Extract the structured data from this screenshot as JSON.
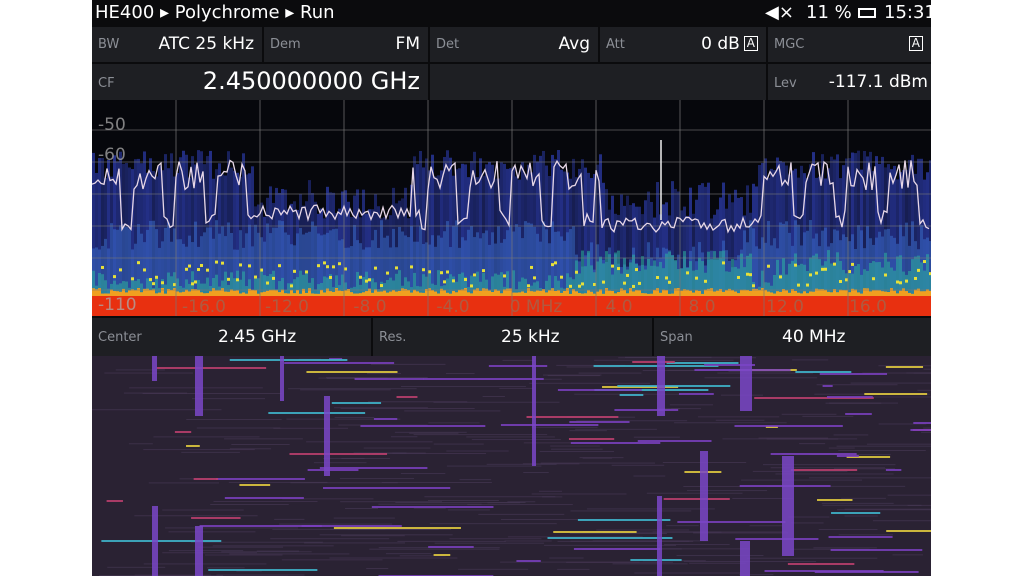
{
  "status_bar": {
    "device": "HE400",
    "mode": "Polychrome",
    "state": "Run",
    "battery": "11 %",
    "time": "15:31"
  },
  "params": [
    {
      "label": "BW",
      "value": "ATC 25 kHz"
    },
    {
      "label": "Dem",
      "value": "FM"
    },
    {
      "label": "Det",
      "value": "Avg"
    },
    {
      "label": "Att",
      "value": "0 dB",
      "flag": "A"
    },
    {
      "label": "MGC",
      "flag": "A"
    }
  ],
  "cf": {
    "label": "CF",
    "value": "2.450000000 GHz"
  },
  "lev": {
    "label": "Lev",
    "value": "-117.1 dBm"
  },
  "spectrum": {
    "y_labels": [
      "-50",
      "-60",
      "-110"
    ],
    "x_labels": [
      "-16.0",
      "-12.0",
      "-8.0",
      "-4.0",
      "0 MHz",
      "4.0",
      "8.0",
      "12.0",
      "16.0"
    ]
  },
  "footer": [
    {
      "label": "Center",
      "value": "2.45 GHz"
    },
    {
      "label": "Res.",
      "value": "25 kHz"
    },
    {
      "label": "Span",
      "value": "40 MHz"
    }
  ]
}
